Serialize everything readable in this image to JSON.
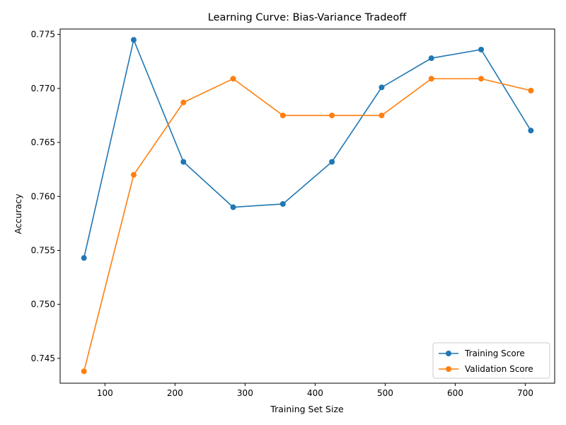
{
  "chart_data": {
    "type": "line",
    "title": "Learning Curve: Bias-Variance Tradeoff",
    "xlabel": "Training Set Size",
    "ylabel": "Accuracy",
    "x": [
      70,
      141,
      212,
      283,
      354,
      424,
      495,
      566,
      637,
      708
    ],
    "xlim": [
      36,
      742
    ],
    "ylim": [
      0.7427,
      0.7755
    ],
    "xticks": [
      100,
      200,
      300,
      400,
      500,
      600,
      700
    ],
    "xtick_labels": [
      "100",
      "200",
      "300",
      "400",
      "500",
      "600",
      "700"
    ],
    "yticks": [
      0.745,
      0.75,
      0.755,
      0.76,
      0.765,
      0.77,
      0.775
    ],
    "ytick_labels": [
      "0.745",
      "0.750",
      "0.755",
      "0.760",
      "0.765",
      "0.770",
      "0.775"
    ],
    "grid": false,
    "legend_position": "lower-right",
    "series": [
      {
        "name": "Training Score",
        "color": "#1f77b4",
        "marker": "circle",
        "values": [
          0.7543,
          0.7745,
          0.7632,
          0.759,
          0.7593,
          0.7632,
          0.7701,
          0.7728,
          0.7736,
          0.7661
        ]
      },
      {
        "name": "Validation Score",
        "color": "#ff7f0e",
        "marker": "circle",
        "values": [
          0.7438,
          0.762,
          0.7687,
          0.7709,
          0.7675,
          0.7675,
          0.7675,
          0.7709,
          0.7709,
          0.7698
        ]
      }
    ]
  }
}
